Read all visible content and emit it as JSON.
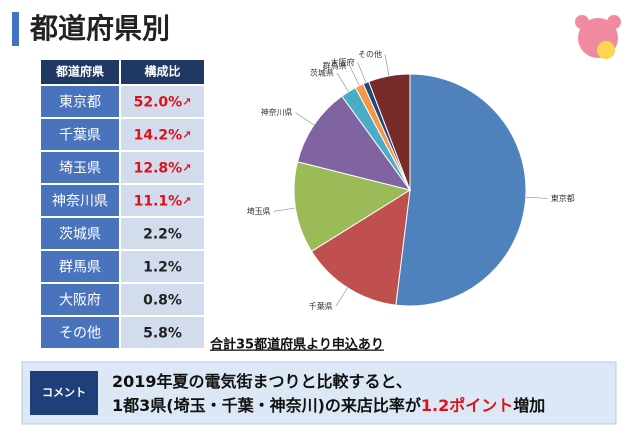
{
  "header": {
    "title": "都道府県別"
  },
  "table": {
    "header": [
      "都道府県",
      "構成比"
    ],
    "trend": [
      "↗",
      "↗",
      "↗",
      "↗",
      null,
      null,
      null,
      null
    ]
  },
  "chart_data": {
    "type": "pie",
    "categories": [
      "東京都",
      "千葉県",
      "埼玉県",
      "神奈川県",
      "茨城県",
      "群馬県",
      "大阪府",
      "その他"
    ],
    "values": [
      52.0,
      14.2,
      12.8,
      11.1,
      2.2,
      1.2,
      0.8,
      5.8
    ],
    "value_labels": [
      "52.0%",
      "14.2%",
      "12.8%",
      "11.1%",
      "2.2%",
      "1.2%",
      "0.8%",
      "5.8%"
    ],
    "colors": [
      "#4f81bd",
      "#c0504d",
      "#9bbb59",
      "#8064a2",
      "#4bacc6",
      "#f79646",
      "#1f497d",
      "#772c2a"
    ]
  },
  "note": "合計35都道府県より申込あり",
  "comment": {
    "label": "コメント",
    "lines": [
      [
        {
          "text": "2019年夏の電気街まつりと比較すると、"
        }
      ],
      [
        {
          "text": "1都3県(埼玉・千葉・神奈川)の来店比率が"
        },
        {
          "text": "1.2ポイント",
          "highlight": true
        },
        {
          "text": "増加"
        }
      ]
    ]
  }
}
